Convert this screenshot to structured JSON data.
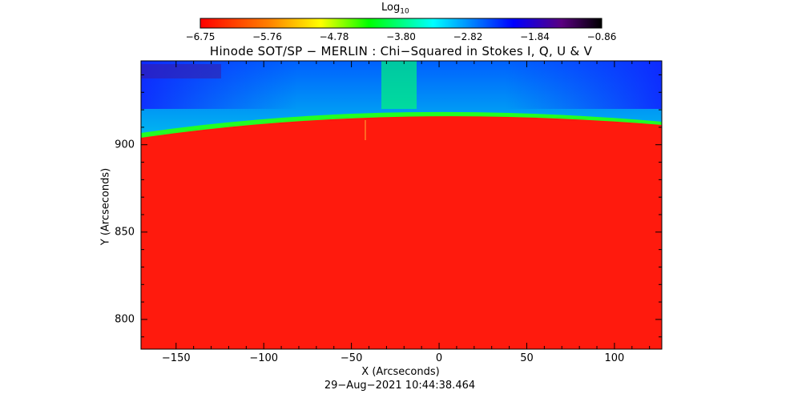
{
  "colorbar": {
    "title_base": "Log",
    "title_sub": "10",
    "ticks": [
      "−6.75",
      "−5.76",
      "−4.78",
      "−3.80",
      "−2.82",
      "−1.84",
      "−0.86"
    ],
    "range": [
      -6.75,
      -0.86
    ],
    "colormap": [
      "#ff0000",
      "#ff8000",
      "#ffff00",
      "#00ff00",
      "#00ffff",
      "#0000ff",
      "#5a0080",
      "#000000"
    ]
  },
  "plot": {
    "title": "Hinode SOT/SP − MERLIN : Chi−Squared in Stokes I, Q, U & V",
    "xlabel": "X (Arcseconds)",
    "ylabel": "Y (Arcseconds)",
    "timestamp": "29−Aug−2021 10:44:38.464",
    "x_ticks": [
      "−150",
      "−100",
      "−50",
      "0",
      "50",
      "100"
    ],
    "y_ticks": [
      "900",
      "850",
      "800"
    ],
    "xlim": [
      -170,
      127
    ],
    "ylim": [
      783,
      948
    ],
    "colors": {
      "disk": "#ff1a0d",
      "limb": "#1aff1a",
      "off_limb": "#00e6c8",
      "upper": "#0055ff"
    }
  }
}
